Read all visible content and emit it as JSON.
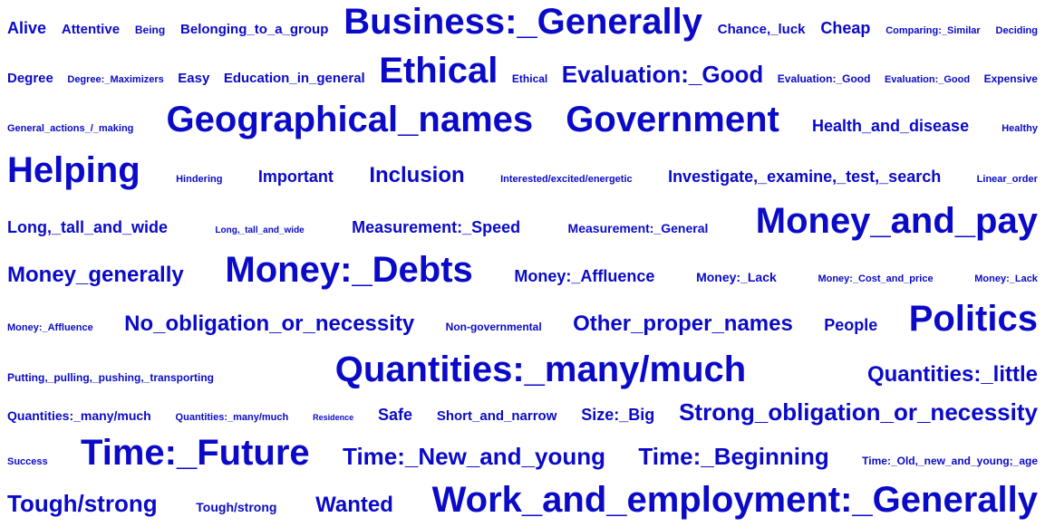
{
  "color": "#0a0ac8",
  "rows": [
    [
      {
        "text": "Alive",
        "size": 18
      },
      {
        "text": "Attentive",
        "size": 15
      },
      {
        "text": "Being",
        "size": 12
      },
      {
        "text": "Belonging_to_a_group",
        "size": 15
      },
      {
        "text": "Business:_Generally",
        "size": 40
      },
      {
        "text": "Chance,_luck",
        "size": 15
      },
      {
        "text": "Cheap",
        "size": 18
      },
      {
        "text": "Comparing:_Similar",
        "size": 11
      },
      {
        "text": "Deciding",
        "size": 11
      }
    ],
    [
      {
        "text": "Degree",
        "size": 15
      },
      {
        "text": "Degree:_Maximizers",
        "size": 11
      },
      {
        "text": "Easy",
        "size": 15
      },
      {
        "text": "Education_in_general",
        "size": 15
      },
      {
        "text": "Ethical",
        "size": 40
      },
      {
        "text": "Ethical",
        "size": 12
      },
      {
        "text": "Evaluation:_Good",
        "size": 26
      },
      {
        "text": "Evaluation:_Good",
        "size": 12
      },
      {
        "text": "Evaluation:_Good",
        "size": 11
      },
      {
        "text": "Expensive",
        "size": 12
      }
    ],
    [
      {
        "text": "General_actions_/_making",
        "size": 11
      },
      {
        "text": "Geographical_names",
        "size": 40
      },
      {
        "text": "Government",
        "size": 40
      },
      {
        "text": "Health_and_disease",
        "size": 18
      },
      {
        "text": "Healthy",
        "size": 11
      }
    ],
    [
      {
        "text": "Helping",
        "size": 40
      },
      {
        "text": "Hindering",
        "size": 11
      },
      {
        "text": "Important",
        "size": 18
      },
      {
        "text": "Inclusion",
        "size": 24
      },
      {
        "text": "Interested/excited/energetic",
        "size": 11
      },
      {
        "text": "Investigate,_examine,_test,_search",
        "size": 18
      },
      {
        "text": "Linear_order",
        "size": 11
      }
    ],
    [
      {
        "text": "Long,_tall_and_wide",
        "size": 18
      },
      {
        "text": "Long,_tall_and_wide",
        "size": 10
      },
      {
        "text": "Measurement:_Speed",
        "size": 18
      },
      {
        "text": "Measurement:_General",
        "size": 14
      },
      {
        "text": "Money_and_pay",
        "size": 40
      }
    ],
    [
      {
        "text": "Money_generally",
        "size": 24
      },
      {
        "text": "Money:_Debts",
        "size": 40
      },
      {
        "text": "Money:_Affluence",
        "size": 18
      },
      {
        "text": "Money:_Lack",
        "size": 14
      },
      {
        "text": "Money:_Cost_and_price",
        "size": 11
      },
      {
        "text": "Money:_Lack",
        "size": 11
      }
    ],
    [
      {
        "text": "Money:_Affluence",
        "size": 11
      },
      {
        "text": "No_obligation_or_necessity",
        "size": 24
      },
      {
        "text": "Non-governmental",
        "size": 12
      },
      {
        "text": "Other_proper_names",
        "size": 24
      },
      {
        "text": "People",
        "size": 18
      },
      {
        "text": "Politics",
        "size": 40
      }
    ],
    [
      {
        "text": "Putting,_pulling,_pushing,_transporting",
        "size": 12
      },
      {
        "text": "Quantities:_many/much",
        "size": 40
      },
      {
        "text": "Quantities:_little",
        "size": 24
      }
    ],
    [
      {
        "text": "Quantities:_many/much",
        "size": 14
      },
      {
        "text": "Quantities:_many/much",
        "size": 11
      },
      {
        "text": "Residence",
        "size": 9
      },
      {
        "text": "Safe",
        "size": 18
      },
      {
        "text": "Short_and_narrow",
        "size": 15
      },
      {
        "text": "Size:_Big",
        "size": 18
      },
      {
        "text": "Strong_obligation_or_necessity",
        "size": 26
      }
    ],
    [
      {
        "text": "Success",
        "size": 11
      },
      {
        "text": "Time:_Future",
        "size": 40
      },
      {
        "text": "Time:_New_and_young",
        "size": 26
      },
      {
        "text": "Time:_Beginning",
        "size": 26
      },
      {
        "text": "Time:_Old,_new_and_young;_age",
        "size": 12
      }
    ],
    [
      {
        "text": "Tough/strong",
        "size": 26
      },
      {
        "text": "Tough/strong",
        "size": 14
      },
      {
        "text": "Wanted",
        "size": 24
      },
      {
        "text": "Work_and_employment:_Generally",
        "size": 40
      }
    ]
  ]
}
